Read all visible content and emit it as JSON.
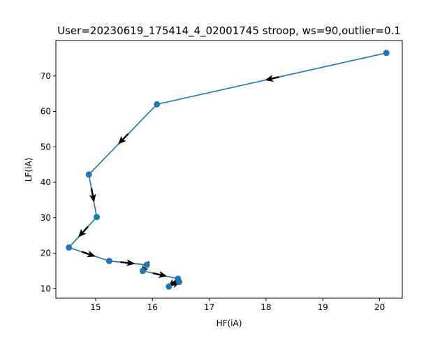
{
  "chart_data": {
    "type": "line",
    "title": "User=20230619_175414_4_02001745 stroop, ws=90,outlier=0.1",
    "xlabel": "HF(iA)",
    "ylabel": "LF(iA)",
    "xlim": [
      14.3,
      20.4
    ],
    "ylim": [
      7.3,
      80.0
    ],
    "xticks": [
      15,
      16,
      17,
      18,
      19,
      20
    ],
    "yticks": [
      10,
      20,
      30,
      40,
      50,
      60,
      70
    ],
    "grid": false,
    "series": [
      {
        "color": "#1f77b4",
        "marker": "circle",
        "arrows": true,
        "x": [
          20.12,
          16.08,
          14.88,
          15.02,
          14.53,
          15.24,
          15.9,
          15.83,
          16.45,
          16.29,
          16.47
        ],
        "y": [
          76.5,
          62.0,
          42.2,
          30.2,
          21.6,
          17.8,
          16.7,
          15.0,
          12.8,
          10.6,
          11.9
        ]
      }
    ]
  }
}
